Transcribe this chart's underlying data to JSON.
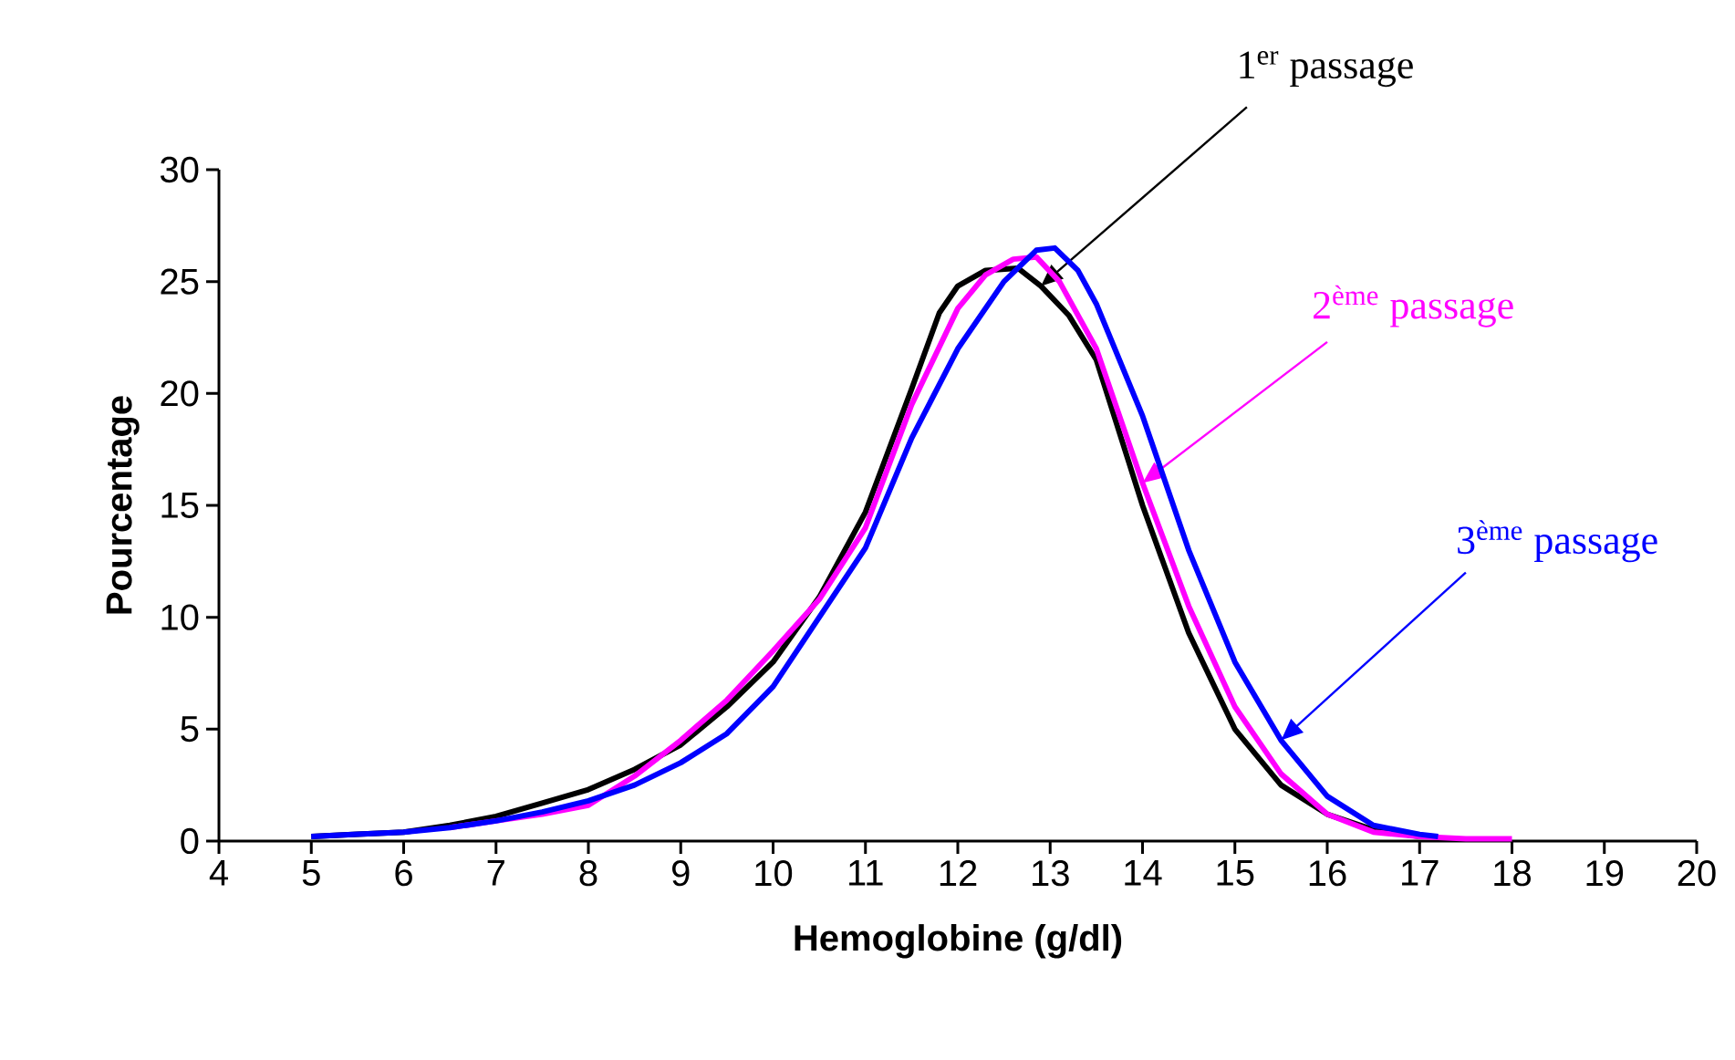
{
  "chart_data": {
    "type": "line",
    "xlabel": "Hemoglobine (g/dl)",
    "ylabel": "Pourcentage",
    "xlim": [
      4,
      20
    ],
    "xticks": [
      4,
      5,
      6,
      7,
      8,
      9,
      10,
      11,
      12,
      13,
      14,
      15,
      16,
      17,
      18,
      19,
      20
    ],
    "ylim": [
      0,
      30
    ],
    "yticks": [
      0,
      5,
      10,
      15,
      20,
      25,
      30
    ],
    "grid": false,
    "legend": false,
    "marker": "none",
    "line_style": "solid",
    "series": [
      {
        "name": "1$^{er}$ passage",
        "color": "#000000",
        "x": [
          5,
          5.5,
          6,
          6.5,
          7,
          7.5,
          8,
          8.5,
          9,
          9.5,
          10,
          10.5,
          11,
          11.5,
          11.8,
          12,
          12.3,
          12.65,
          12.9,
          13.2,
          13.5,
          14,
          14.5,
          15,
          15.5,
          16,
          16.5,
          17
        ],
        "values": [
          0.2,
          0.3,
          0.4,
          0.7,
          1.1,
          1.7,
          2.3,
          3.2,
          4.3,
          6.0,
          8.0,
          10.9,
          14.7,
          20.2,
          23.6,
          24.8,
          25.5,
          25.6,
          24.8,
          23.5,
          21.5,
          15.0,
          9.3,
          5.0,
          2.5,
          1.2,
          0.5,
          0.2
        ]
      },
      {
        "name": "2$^{ème}$ passage",
        "color": "#ff00ff",
        "x": [
          6.5,
          7,
          7.5,
          8,
          8.5,
          9,
          9.5,
          10,
          10.5,
          11,
          11.5,
          12,
          12.3,
          12.6,
          12.85,
          13.1,
          13.5,
          14,
          14.5,
          15,
          15.5,
          16,
          16.5,
          17,
          17.5,
          18
        ],
        "values": [
          0.6,
          0.9,
          1.2,
          1.6,
          2.9,
          4.5,
          6.3,
          8.5,
          10.8,
          14.0,
          19.5,
          23.8,
          25.3,
          26.0,
          26.1,
          25.0,
          22.0,
          16.0,
          10.5,
          6.0,
          3.0,
          1.2,
          0.4,
          0.2,
          0.1,
          0.1
        ]
      },
      {
        "name": "3$^{ème}$ passage",
        "color": "#0000ff",
        "x": [
          5,
          5.5,
          6,
          6.5,
          7,
          7.5,
          8,
          8.5,
          9,
          9.5,
          10,
          10.5,
          11,
          11.5,
          12,
          12.5,
          12.85,
          13.05,
          13.3,
          13.5,
          14,
          14.5,
          15,
          15.5,
          16,
          16.5,
          17,
          17.2
        ],
        "values": [
          0.2,
          0.3,
          0.4,
          0.6,
          0.9,
          1.3,
          1.8,
          2.5,
          3.5,
          4.8,
          6.9,
          10.0,
          13.1,
          18.0,
          22.0,
          25.0,
          26.4,
          26.5,
          25.5,
          24.0,
          19.0,
          13.0,
          8.0,
          4.5,
          2.0,
          0.7,
          0.3,
          0.2
        ]
      }
    ]
  }
}
